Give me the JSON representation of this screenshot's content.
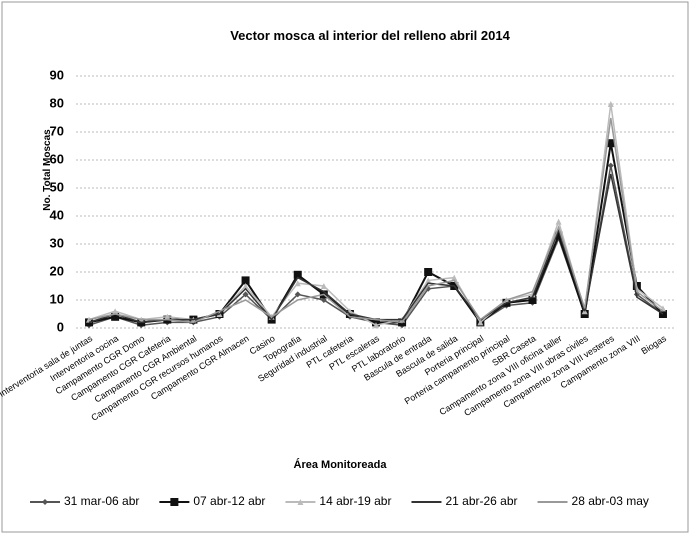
{
  "chart_data": {
    "type": "line",
    "title": "Vector mosca al interior del relleno abril 2014",
    "y_label": "No. Total Moscas",
    "x_label": "Área Monitoreada",
    "categories": [
      "Interventoria sala de juntas",
      "Interventoria cocina",
      "Campamento CGR Domo",
      "Campamento CGR Cafeteria",
      "Campamento CGR Ambiental",
      "Campamento CGR recursos humanos",
      "Campamento CGR Almacen",
      "Casino",
      "Topografia",
      "Seguridad industrial",
      "PTL cafeteria",
      "PTL escaleras",
      "PTL laboratorio",
      "Bascula de entrada",
      "Bascula de salida",
      "Porteria principal",
      "Porteria campamento principal",
      "SBR Caseta",
      "Campamento zona VIII oficina taller",
      "Campamento zona VIII obras civiles",
      "Campamento zona VIII vesteres",
      "Campamento zona VIII",
      "Biogas"
    ],
    "series": [
      {
        "name": "31 mar-06 abr",
        "color": "#555555",
        "marker": "diamond",
        "values": [
          1,
          4,
          1,
          2,
          2,
          4,
          12,
          3,
          12,
          10,
          4,
          2,
          1,
          14,
          15,
          2,
          8,
          9,
          32,
          5,
          58,
          12,
          5
        ]
      },
      {
        "name": "07 abr-12 abr",
        "color": "#111111",
        "marker": "square",
        "values": [
          2,
          4,
          2,
          3,
          3,
          5,
          17,
          3,
          19,
          12,
          5,
          2,
          2,
          20,
          15,
          2,
          9,
          10,
          33,
          5,
          66,
          15,
          5
        ]
      },
      {
        "name": "14 abr-19 abr",
        "color": "#bbbbbb",
        "marker": "triangle",
        "values": [
          3,
          6,
          3,
          4,
          3,
          5,
          15,
          4,
          16,
          15,
          6,
          1,
          3,
          17,
          18,
          2,
          10,
          12,
          38,
          6,
          80,
          14,
          7
        ]
      },
      {
        "name": "21 abr-26 abr",
        "color": "#333333",
        "marker": "none",
        "values": [
          2,
          5,
          2,
          3,
          3,
          5,
          14,
          3,
          18,
          13,
          5,
          3,
          3,
          16,
          15,
          3,
          9,
          11,
          35,
          6,
          55,
          11,
          5
        ]
      },
      {
        "name": "28 abr-03 may",
        "color": "#999999",
        "marker": "none",
        "values": [
          3,
          5,
          3,
          3,
          2,
          6,
          10,
          4,
          10,
          12,
          4,
          3,
          2,
          15,
          17,
          3,
          10,
          13,
          36,
          7,
          75,
          13,
          6
        ]
      }
    ],
    "ylim": [
      0,
      90
    ],
    "yticks": [
      0,
      10,
      20,
      30,
      40,
      50,
      60,
      70,
      80,
      90
    ],
    "grid": true
  }
}
